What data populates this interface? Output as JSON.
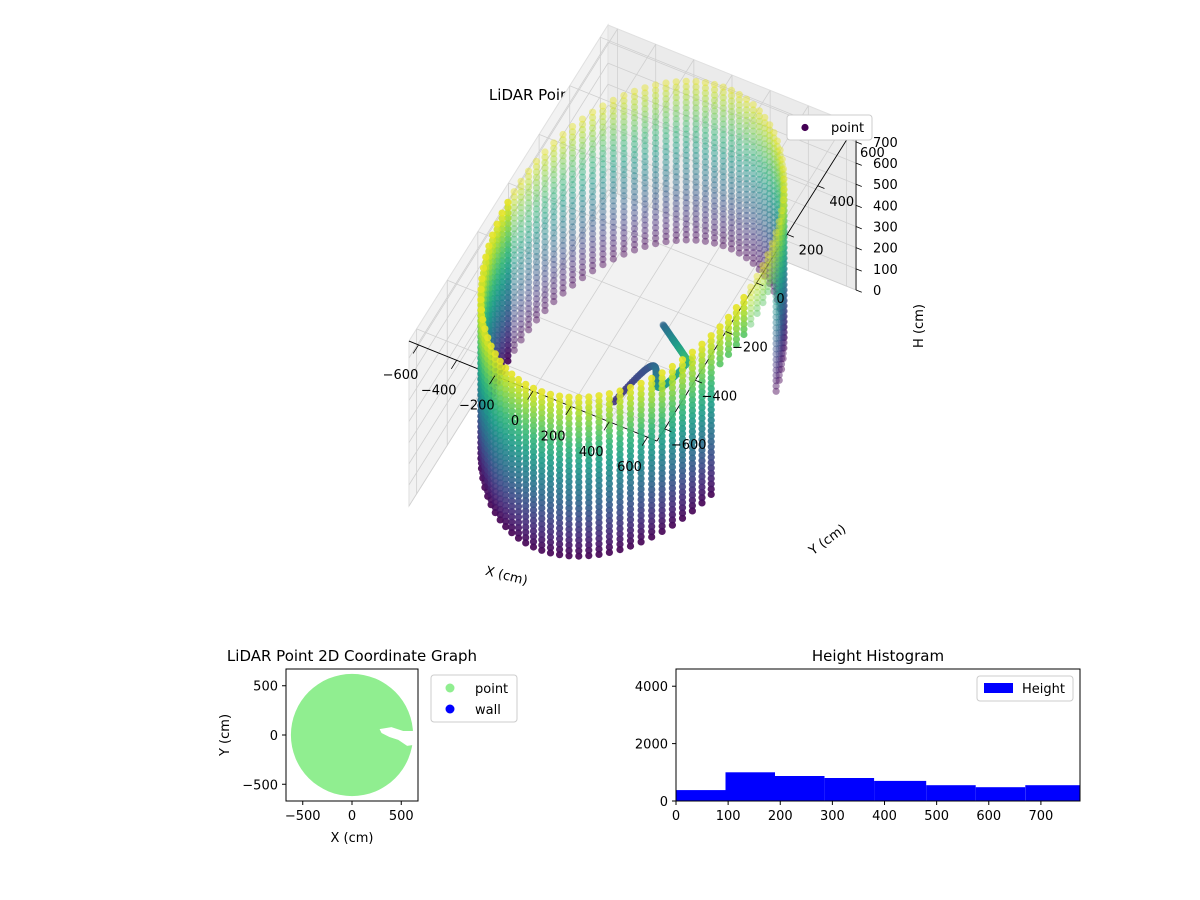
{
  "chart_data": [
    {
      "type": "scatter3d",
      "title": "LiDAR Point 3D Coordinate Graph",
      "xlabel": "X (cm)",
      "ylabel": "Y (cm)",
      "zlabel": "H (cm)",
      "xlim": [
        -650,
        650
      ],
      "ylim": [
        -650,
        650
      ],
      "zlim": [
        780,
        0
      ],
      "z_inverted": true,
      "xticks": [
        "−600",
        "−400",
        "−200",
        "0",
        "200",
        "400",
        "600"
      ],
      "yticks": [
        "−600",
        "−400",
        "−200",
        "0",
        "200",
        "400",
        "600"
      ],
      "zticks": [
        "0",
        "100",
        "200",
        "300",
        "400",
        "500",
        "600",
        "700"
      ],
      "colormap": "viridis",
      "legend": {
        "entries": [
          "point"
        ],
        "placement": "top-right",
        "marker_color": "#440154"
      },
      "shape": {
        "radius": 620,
        "height_range": [
          0,
          760
        ],
        "ring_step_cm": 25,
        "gap_angle_range_deg": [
          -20,
          20
        ],
        "inner_structure_x_range": [
          0,
          450
        ],
        "inner_structure_y_range": [
          -180,
          120
        ]
      },
      "grid": true
    },
    {
      "type": "scatter",
      "title": "LiDAR Point 2D Coordinate Graph",
      "xlabel": "X (cm)",
      "ylabel": "Y (cm)",
      "xlim": [
        -670,
        670
      ],
      "ylim": [
        -670,
        670
      ],
      "xticks": [
        "−500",
        "0",
        "500"
      ],
      "yticks": [
        "−500",
        "0",
        "500"
      ],
      "series": [
        {
          "name": "point",
          "color": "#90ee90",
          "shape": "disk",
          "radius": 620
        },
        {
          "name": "wall",
          "color": "#0000ff",
          "shape": "none"
        }
      ],
      "legend": {
        "placement": "outside-right"
      }
    },
    {
      "type": "bar",
      "title": "Height Histogram",
      "xlim": [
        0,
        775
      ],
      "ylim": [
        0,
        4600
      ],
      "xticks": [
        "0",
        "100",
        "200",
        "300",
        "400",
        "500",
        "600",
        "700"
      ],
      "yticks": [
        "0",
        "2000",
        "4000"
      ],
      "bin_edges": [
        0,
        95,
        190,
        285,
        380,
        480,
        575,
        670,
        775
      ],
      "values": [
        380,
        1000,
        870,
        800,
        700,
        550,
        480,
        550
      ],
      "color": "#0000ff",
      "legend": {
        "entries": [
          "Height"
        ],
        "placement": "top-right"
      }
    }
  ]
}
